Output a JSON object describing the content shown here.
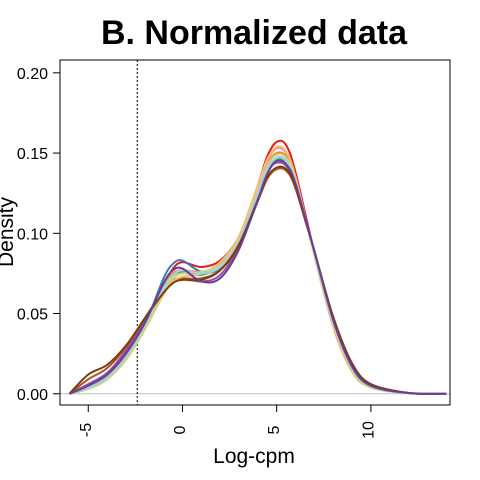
{
  "chart_data": {
    "type": "line",
    "title": "B. Normalized  data",
    "xlabel": "Log-cpm",
    "ylabel": "Density",
    "xlim": [
      -6.5,
      14.2
    ],
    "ylim": [
      -0.007,
      0.208
    ],
    "x_ticks": [
      {
        "value": -5,
        "label": "-5"
      },
      {
        "value": 0,
        "label": "0"
      },
      {
        "value": 5,
        "label": "5"
      },
      {
        "value": 10,
        "label": "10"
      }
    ],
    "y_ticks": [
      {
        "value": 0.0,
        "label": "0.00"
      },
      {
        "value": 0.05,
        "label": "0.05"
      },
      {
        "value": 0.1,
        "label": "0.10"
      },
      {
        "value": 0.15,
        "label": "0.15"
      },
      {
        "value": 0.2,
        "label": "0.20"
      }
    ],
    "cutoff_line_x": -2.4,
    "baseline_y": 0.0,
    "legend": "none",
    "grid": false,
    "series": [
      {
        "color": "#e41a1c",
        "x": [
          -6,
          -5,
          -4,
          -3,
          -2,
          -1,
          -0.5,
          0,
          1,
          2,
          3,
          4,
          4.5,
          5,
          5.5,
          6,
          7,
          8,
          9,
          10,
          12,
          14
        ],
        "y": [
          0,
          0.005,
          0.012,
          0.025,
          0.045,
          0.068,
          0.078,
          0.082,
          0.079,
          0.083,
          0.098,
          0.13,
          0.148,
          0.157,
          0.155,
          0.138,
          0.088,
          0.042,
          0.014,
          0.004,
          0.0005,
          0
        ]
      },
      {
        "color": "#377eb8",
        "x": [
          -6,
          -5,
          -4,
          -3,
          -2,
          -1,
          -0.5,
          0,
          1,
          2,
          3,
          4,
          4.5,
          5,
          5.5,
          6,
          7,
          8,
          9,
          10,
          12,
          14
        ],
        "y": [
          0,
          0.004,
          0.01,
          0.023,
          0.043,
          0.072,
          0.081,
          0.083,
          0.076,
          0.078,
          0.094,
          0.122,
          0.138,
          0.147,
          0.145,
          0.132,
          0.088,
          0.045,
          0.016,
          0.005,
          0.0005,
          0
        ]
      },
      {
        "color": "#4daf4a",
        "x": [
          -6,
          -5,
          -4,
          -3,
          -2,
          -1,
          -0.5,
          0,
          1,
          2,
          3,
          4,
          4.5,
          5,
          5.5,
          6,
          7,
          8,
          9,
          10,
          12,
          14
        ],
        "y": [
          0,
          0.004,
          0.01,
          0.024,
          0.044,
          0.066,
          0.074,
          0.076,
          0.074,
          0.08,
          0.096,
          0.125,
          0.14,
          0.146,
          0.144,
          0.131,
          0.089,
          0.046,
          0.017,
          0.005,
          0.0005,
          0
        ]
      },
      {
        "color": "#984ea3",
        "x": [
          -6,
          -5,
          -4,
          -3,
          -2,
          -1,
          -0.5,
          0,
          1,
          2,
          3,
          4,
          4.5,
          5,
          5.5,
          6,
          7,
          8,
          9,
          10,
          12,
          14
        ],
        "y": [
          0,
          0.006,
          0.013,
          0.027,
          0.046,
          0.064,
          0.07,
          0.072,
          0.07,
          0.074,
          0.092,
          0.124,
          0.139,
          0.144,
          0.142,
          0.13,
          0.088,
          0.046,
          0.017,
          0.005,
          0.0005,
          0
        ]
      },
      {
        "color": "#ff7f00",
        "x": [
          -6,
          -5,
          -4,
          -3,
          -2,
          -1,
          -0.5,
          0,
          1,
          2,
          3,
          4,
          4.5,
          5,
          5.5,
          6,
          7,
          8,
          9,
          10,
          12,
          14
        ],
        "y": [
          0,
          0.005,
          0.011,
          0.024,
          0.043,
          0.067,
          0.075,
          0.077,
          0.076,
          0.081,
          0.097,
          0.127,
          0.143,
          0.15,
          0.148,
          0.134,
          0.087,
          0.043,
          0.015,
          0.004,
          0.0005,
          0
        ]
      },
      {
        "color": "#a65628",
        "x": [
          -6,
          -5,
          -4,
          -3,
          -2,
          -1,
          -0.5,
          0,
          1,
          2,
          3,
          4,
          4.5,
          5,
          5.5,
          6,
          7,
          8,
          9,
          10,
          12,
          14
        ],
        "y": [
          0,
          0.009,
          0.016,
          0.029,
          0.047,
          0.065,
          0.071,
          0.072,
          0.072,
          0.077,
          0.092,
          0.12,
          0.134,
          0.14,
          0.139,
          0.128,
          0.088,
          0.047,
          0.018,
          0.006,
          0.0005,
          0
        ]
      },
      {
        "color": "#f781bf",
        "x": [
          -6,
          -5,
          -4,
          -3,
          -2,
          -1,
          -0.5,
          0,
          1,
          2,
          3,
          4,
          4.5,
          5,
          5.5,
          6,
          7,
          8,
          9,
          10,
          12,
          14
        ],
        "y": [
          0,
          0.004,
          0.01,
          0.022,
          0.041,
          0.063,
          0.072,
          0.075,
          0.075,
          0.08,
          0.097,
          0.129,
          0.145,
          0.153,
          0.15,
          0.135,
          0.087,
          0.043,
          0.015,
          0.004,
          0.0005,
          0
        ]
      },
      {
        "color": "#fdbf6f",
        "x": [
          -6,
          -5,
          -4,
          -3,
          -2,
          -1,
          -0.5,
          0,
          1,
          2,
          3,
          4,
          4.5,
          5,
          5.5,
          6,
          7,
          8,
          9,
          10,
          12,
          14
        ],
        "y": [
          0,
          0.003,
          0.009,
          0.021,
          0.04,
          0.062,
          0.07,
          0.073,
          0.075,
          0.082,
          0.098,
          0.13,
          0.146,
          0.154,
          0.151,
          0.135,
          0.086,
          0.042,
          0.014,
          0.004,
          0.0005,
          0
        ]
      },
      {
        "color": "#b2df8a",
        "x": [
          -6,
          -5,
          -4,
          -3,
          -2,
          -1,
          -0.5,
          0,
          1,
          2,
          3,
          4,
          4.5,
          5,
          5.5,
          6,
          7,
          8,
          9,
          10,
          12,
          14
        ],
        "y": [
          0,
          0.003,
          0.009,
          0.022,
          0.041,
          0.064,
          0.072,
          0.075,
          0.076,
          0.08,
          0.096,
          0.126,
          0.142,
          0.149,
          0.147,
          0.133,
          0.087,
          0.044,
          0.015,
          0.004,
          0.0005,
          0
        ]
      },
      {
        "color": "#a6cee3",
        "x": [
          -6,
          -5,
          -4,
          -3,
          -2,
          -1,
          -0.5,
          0,
          1,
          2,
          3,
          4,
          4.5,
          5,
          5.5,
          6,
          7,
          8,
          9,
          10,
          12,
          14
        ],
        "y": [
          0,
          0.004,
          0.01,
          0.023,
          0.043,
          0.066,
          0.074,
          0.077,
          0.075,
          0.079,
          0.095,
          0.124,
          0.14,
          0.147,
          0.145,
          0.132,
          0.088,
          0.045,
          0.016,
          0.005,
          0.0005,
          0
        ]
      },
      {
        "color": "#7f3b08",
        "x": [
          -6,
          -5,
          -4,
          -3,
          -2,
          -1,
          -0.5,
          0,
          1,
          2,
          3,
          4,
          4.5,
          5,
          5.5,
          6,
          7,
          8,
          9,
          10,
          12,
          14
        ],
        "y": [
          0,
          0.012,
          0.018,
          0.03,
          0.047,
          0.063,
          0.069,
          0.071,
          0.071,
          0.077,
          0.093,
          0.121,
          0.135,
          0.141,
          0.14,
          0.129,
          0.089,
          0.048,
          0.019,
          0.006,
          0.0005,
          0
        ]
      },
      {
        "color": "#6a3d9a",
        "x": [
          -6,
          -5,
          -4,
          -3,
          -2,
          -1,
          -0.5,
          0,
          1,
          2,
          3,
          4,
          4.5,
          5,
          5.5,
          6,
          7,
          8,
          9,
          10,
          12,
          14
        ],
        "y": [
          0,
          0.005,
          0.012,
          0.025,
          0.044,
          0.069,
          0.077,
          0.078,
          0.07,
          0.072,
          0.09,
          0.121,
          0.137,
          0.145,
          0.143,
          0.131,
          0.089,
          0.046,
          0.017,
          0.005,
          0.0005,
          0
        ]
      }
    ]
  }
}
